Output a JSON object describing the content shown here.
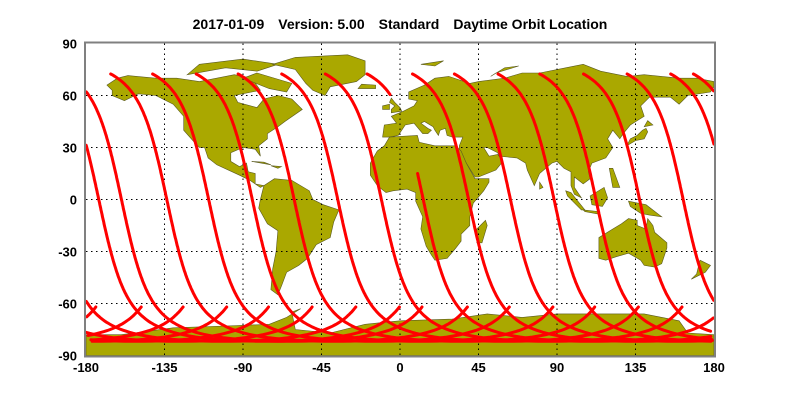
{
  "title": {
    "date": "2017-01-09",
    "version": "Version: 5.00",
    "product": "Standard",
    "description": "Daytime Orbit Location"
  },
  "axes": {
    "x_ticks": [
      "-180",
      "-135",
      "-90",
      "-45",
      "0",
      "45",
      "90",
      "135",
      "180"
    ],
    "y_ticks": [
      "90",
      "60",
      "30",
      "0",
      "-30",
      "-60",
      "-90"
    ],
    "xlim": [
      -180,
      180
    ],
    "ylim": [
      -90,
      90
    ],
    "grid": "dotted"
  },
  "colors": {
    "land": "#aaa800",
    "coast": "#5a5a20",
    "orbit": "#ff0000",
    "grid": "#000000",
    "frame": "#808080"
  },
  "orbit_tracks": {
    "northern_limit_lat": 72.5,
    "southern_start_lat": -62,
    "northmost_lons": [
      -166,
      -142,
      -117,
      -93,
      -68,
      -43,
      -19,
      7,
      31,
      56,
      80,
      105,
      130,
      155,
      168
    ],
    "data_gap": {
      "track_northmost_lon": -19,
      "lat_range": [
        15,
        60
      ]
    }
  }
}
